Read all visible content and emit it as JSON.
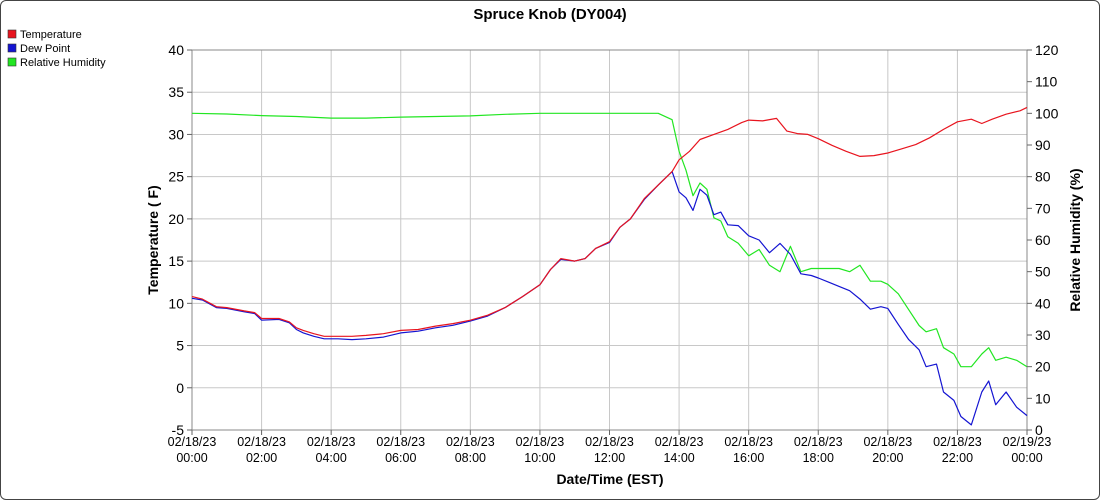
{
  "chart_data": {
    "type": "line",
    "title": "Spruce Knob (DY004)",
    "xlabel": "Date/Time (EST)",
    "ylabel_left": "Temperature ( F)",
    "ylabel_right": "Relative Humidity (%)",
    "ylim_left": [
      -5,
      40
    ],
    "ylim_right": [
      0,
      120
    ],
    "yticks_left": [
      "-5",
      "0",
      "5",
      "10",
      "15",
      "20",
      "25",
      "30",
      "35",
      "40"
    ],
    "yticks_right": [
      "0",
      "10",
      "20",
      "30",
      "40",
      "50",
      "60",
      "70",
      "80",
      "90",
      "100",
      "110",
      "120"
    ],
    "xlim_hours": [
      0,
      24
    ],
    "grid": true,
    "legend_position": "top-left",
    "x_ticks": [
      {
        "hour": 0,
        "date": "02/18/23",
        "time": "00:00"
      },
      {
        "hour": 2,
        "date": "02/18/23",
        "time": "02:00"
      },
      {
        "hour": 4,
        "date": "02/18/23",
        "time": "04:00"
      },
      {
        "hour": 6,
        "date": "02/18/23",
        "time": "06:00"
      },
      {
        "hour": 8,
        "date": "02/18/23",
        "time": "08:00"
      },
      {
        "hour": 10,
        "date": "02/18/23",
        "time": "10:00"
      },
      {
        "hour": 12,
        "date": "02/18/23",
        "time": "12:00"
      },
      {
        "hour": 14,
        "date": "02/18/23",
        "time": "14:00"
      },
      {
        "hour": 16,
        "date": "02/18/23",
        "time": "16:00"
      },
      {
        "hour": 18,
        "date": "02/18/23",
        "time": "18:00"
      },
      {
        "hour": 20,
        "date": "02/18/23",
        "time": "20:00"
      },
      {
        "hour": 22,
        "date": "02/18/23",
        "time": "22:00"
      },
      {
        "hour": 24,
        "date": "02/19/23",
        "time": "00:00"
      }
    ],
    "series": [
      {
        "name": "Temperature",
        "color": "#e8141e",
        "axis": "left",
        "points": [
          [
            0,
            10.8
          ],
          [
            0.3,
            10.5
          ],
          [
            0.7,
            9.6
          ],
          [
            1,
            9.5
          ],
          [
            1.5,
            9.1
          ],
          [
            1.8,
            8.9
          ],
          [
            2,
            8.2
          ],
          [
            2.5,
            8.2
          ],
          [
            2.8,
            7.8
          ],
          [
            3,
            7.1
          ],
          [
            3.2,
            6.8
          ],
          [
            3.5,
            6.4
          ],
          [
            3.8,
            6.1
          ],
          [
            4.2,
            6.1
          ],
          [
            4.6,
            6.1
          ],
          [
            5,
            6.2
          ],
          [
            5.5,
            6.4
          ],
          [
            6,
            6.8
          ],
          [
            6.5,
            6.9
          ],
          [
            7,
            7.3
          ],
          [
            7.5,
            7.6
          ],
          [
            8,
            8.0
          ],
          [
            8.5,
            8.6
          ],
          [
            9,
            9.5
          ],
          [
            9.5,
            10.8
          ],
          [
            10,
            12.2
          ],
          [
            10.3,
            14.0
          ],
          [
            10.6,
            15.3
          ],
          [
            11,
            15.0
          ],
          [
            11.3,
            15.3
          ],
          [
            11.6,
            16.5
          ],
          [
            12,
            17.3
          ],
          [
            12.3,
            19.0
          ],
          [
            12.6,
            20.0
          ],
          [
            13,
            22.4
          ],
          [
            13.4,
            24.0
          ],
          [
            13.8,
            25.6
          ],
          [
            14,
            27.0
          ],
          [
            14.3,
            28.0
          ],
          [
            14.6,
            29.4
          ],
          [
            15,
            30.0
          ],
          [
            15.4,
            30.6
          ],
          [
            15.8,
            31.4
          ],
          [
            16,
            31.7
          ],
          [
            16.4,
            31.6
          ],
          [
            16.8,
            31.9
          ],
          [
            17.1,
            30.4
          ],
          [
            17.4,
            30.1
          ],
          [
            17.7,
            30.0
          ],
          [
            18,
            29.5
          ],
          [
            18.4,
            28.7
          ],
          [
            18.8,
            28.0
          ],
          [
            19.2,
            27.4
          ],
          [
            19.6,
            27.5
          ],
          [
            20,
            27.8
          ],
          [
            20.4,
            28.3
          ],
          [
            20.8,
            28.8
          ],
          [
            21.2,
            29.6
          ],
          [
            21.6,
            30.6
          ],
          [
            22,
            31.5
          ],
          [
            22.4,
            31.8
          ],
          [
            22.7,
            31.3
          ],
          [
            23,
            31.8
          ],
          [
            23.4,
            32.4
          ],
          [
            23.8,
            32.8
          ],
          [
            24,
            33.2
          ]
        ]
      },
      {
        "name": "Dew Point",
        "color": "#1414d2",
        "axis": "left",
        "points": [
          [
            0,
            10.6
          ],
          [
            0.3,
            10.4
          ],
          [
            0.7,
            9.5
          ],
          [
            1,
            9.4
          ],
          [
            1.5,
            9.0
          ],
          [
            1.8,
            8.8
          ],
          [
            2,
            8.0
          ],
          [
            2.5,
            8.1
          ],
          [
            2.8,
            7.7
          ],
          [
            3,
            6.9
          ],
          [
            3.2,
            6.5
          ],
          [
            3.5,
            6.1
          ],
          [
            3.8,
            5.8
          ],
          [
            4.2,
            5.8
          ],
          [
            4.6,
            5.7
          ],
          [
            5,
            5.8
          ],
          [
            5.5,
            6.0
          ],
          [
            6,
            6.5
          ],
          [
            6.5,
            6.7
          ],
          [
            7,
            7.1
          ],
          [
            7.5,
            7.4
          ],
          [
            8,
            7.9
          ],
          [
            8.5,
            8.5
          ],
          [
            9,
            9.5
          ],
          [
            9.5,
            10.8
          ],
          [
            10,
            12.2
          ],
          [
            10.3,
            14.0
          ],
          [
            10.6,
            15.2
          ],
          [
            11,
            15.0
          ],
          [
            11.3,
            15.3
          ],
          [
            11.6,
            16.5
          ],
          [
            12,
            17.2
          ],
          [
            12.3,
            19.0
          ],
          [
            12.6,
            20.0
          ],
          [
            13,
            22.3
          ],
          [
            13.4,
            24.0
          ],
          [
            13.8,
            25.6
          ],
          [
            14,
            23.2
          ],
          [
            14.2,
            22.5
          ],
          [
            14.4,
            21.0
          ],
          [
            14.6,
            23.5
          ],
          [
            14.8,
            22.8
          ],
          [
            15,
            20.5
          ],
          [
            15.2,
            20.8
          ],
          [
            15.4,
            19.3
          ],
          [
            15.7,
            19.2
          ],
          [
            16,
            18.0
          ],
          [
            16.3,
            17.5
          ],
          [
            16.6,
            16.0
          ],
          [
            16.9,
            17.1
          ],
          [
            17.2,
            15.8
          ],
          [
            17.5,
            13.5
          ],
          [
            17.8,
            13.3
          ],
          [
            18,
            13.0
          ],
          [
            18.3,
            12.5
          ],
          [
            18.6,
            12.0
          ],
          [
            18.9,
            11.5
          ],
          [
            19.2,
            10.5
          ],
          [
            19.5,
            9.3
          ],
          [
            19.8,
            9.6
          ],
          [
            20,
            9.4
          ],
          [
            20.3,
            7.5
          ],
          [
            20.6,
            5.7
          ],
          [
            20.9,
            4.5
          ],
          [
            21.1,
            2.5
          ],
          [
            21.4,
            2.8
          ],
          [
            21.6,
            -0.5
          ],
          [
            21.9,
            -1.5
          ],
          [
            22.1,
            -3.4
          ],
          [
            22.4,
            -4.4
          ],
          [
            22.7,
            -0.5
          ],
          [
            22.9,
            0.8
          ],
          [
            23.1,
            -2.0
          ],
          [
            23.4,
            -0.5
          ],
          [
            23.7,
            -2.3
          ],
          [
            24,
            -3.3
          ]
        ]
      },
      {
        "name": "Relative Humidity",
        "color": "#22e622",
        "axis": "right",
        "points": [
          [
            0,
            100
          ],
          [
            1,
            99.8
          ],
          [
            2,
            99.3
          ],
          [
            3,
            99
          ],
          [
            4,
            98.5
          ],
          [
            5,
            98.5
          ],
          [
            6,
            98.8
          ],
          [
            7,
            99
          ],
          [
            8,
            99.2
          ],
          [
            9,
            99.7
          ],
          [
            10,
            100
          ],
          [
            11,
            100
          ],
          [
            12,
            100
          ],
          [
            13,
            100
          ],
          [
            13.4,
            100
          ],
          [
            13.8,
            98
          ],
          [
            14,
            88
          ],
          [
            14.2,
            82
          ],
          [
            14.4,
            74
          ],
          [
            14.6,
            78
          ],
          [
            14.8,
            76
          ],
          [
            15,
            67
          ],
          [
            15.2,
            66
          ],
          [
            15.4,
            61
          ],
          [
            15.7,
            59
          ],
          [
            16,
            55
          ],
          [
            16.3,
            57
          ],
          [
            16.6,
            52
          ],
          [
            16.9,
            50
          ],
          [
            17.2,
            58
          ],
          [
            17.5,
            50
          ],
          [
            17.8,
            51
          ],
          [
            18,
            51
          ],
          [
            18.3,
            51
          ],
          [
            18.6,
            51
          ],
          [
            18.9,
            50
          ],
          [
            19.2,
            52
          ],
          [
            19.5,
            47
          ],
          [
            19.8,
            47
          ],
          [
            20,
            46
          ],
          [
            20.3,
            43
          ],
          [
            20.6,
            38
          ],
          [
            20.9,
            33
          ],
          [
            21.1,
            31
          ],
          [
            21.4,
            32
          ],
          [
            21.6,
            26
          ],
          [
            21.9,
            24
          ],
          [
            22.1,
            20
          ],
          [
            22.4,
            20
          ],
          [
            22.7,
            24
          ],
          [
            22.9,
            26
          ],
          [
            23.1,
            22
          ],
          [
            23.4,
            23
          ],
          [
            23.7,
            22
          ],
          [
            24,
            20
          ]
        ]
      }
    ]
  }
}
